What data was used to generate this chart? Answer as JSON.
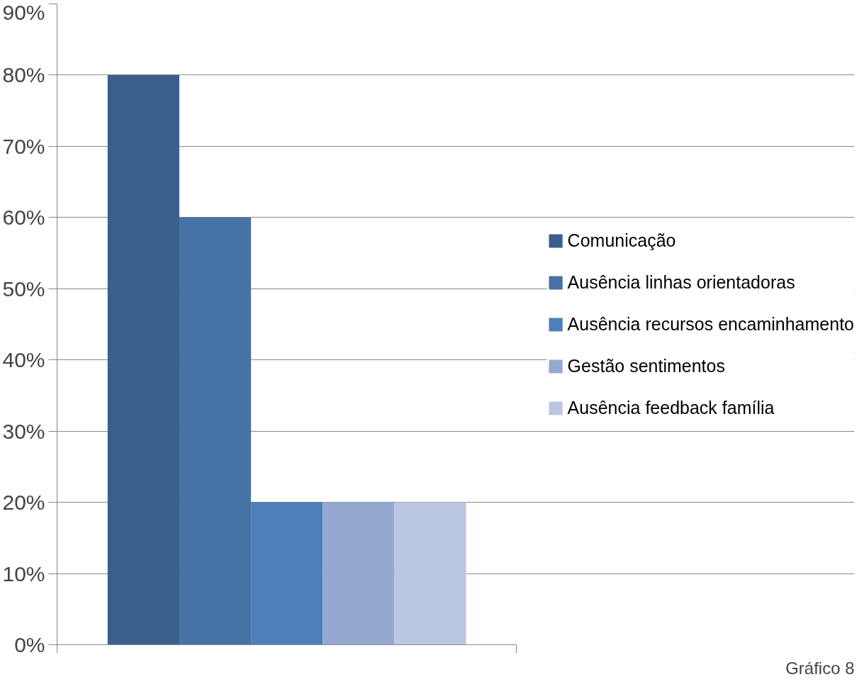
{
  "chart_data": {
    "type": "bar",
    "categories": [
      null
    ],
    "series": [
      {
        "name": "Comunicação",
        "color": "#3b5f8c",
        "values": [
          80
        ]
      },
      {
        "name": "Ausência linhas orientadoras",
        "color": "#4672a6",
        "values": [
          60
        ]
      },
      {
        "name": "Ausência recursos encaminhamento",
        "color": "#4d7fba",
        "values": [
          20
        ]
      },
      {
        "name": "Gestão sentimentos",
        "color": "#95a9d0",
        "values": [
          20
        ]
      },
      {
        "name": "Ausência feedback família",
        "color": "#bbc7e0",
        "values": [
          20
        ]
      }
    ],
    "ylim": [
      0,
      90
    ],
    "yticks": [
      {
        "value": 0,
        "label": "0%"
      },
      {
        "value": 10,
        "label": "10%"
      },
      {
        "value": 20,
        "label": "20%"
      },
      {
        "value": 30,
        "label": "30%"
      },
      {
        "value": 40,
        "label": "40%"
      },
      {
        "value": 50,
        "label": "50%"
      },
      {
        "value": 60,
        "label": "60%"
      },
      {
        "value": 70,
        "label": "70%"
      },
      {
        "value": 80,
        "label": "80%"
      },
      {
        "value": 90,
        "label": "90%"
      }
    ],
    "grid": "y",
    "legend": "right",
    "tick_labels": "y",
    "annotations": [
      "Gráfico 8"
    ]
  }
}
